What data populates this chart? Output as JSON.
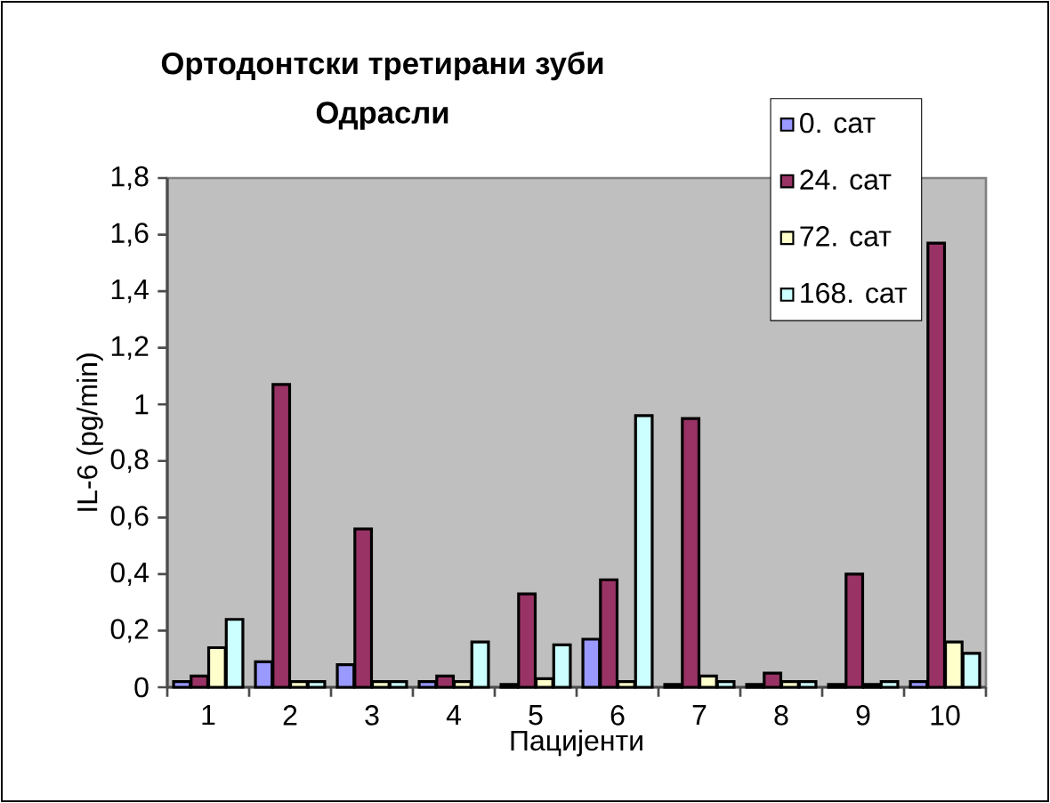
{
  "chart_data": {
    "type": "bar",
    "title": "Ортодонтски третирани зуби",
    "subtitle": "Одрасли",
    "xlabel": "Пацијенти",
    "ylabel": "IL-6 (pg/min)",
    "categories": [
      "1",
      "2",
      "3",
      "4",
      "5",
      "6",
      "7",
      "8",
      "9",
      "10"
    ],
    "series": [
      {
        "name": "0. сат",
        "color": "#9999ff",
        "values": [
          0.02,
          0.09,
          0.08,
          0.02,
          0.01,
          0.17,
          0.01,
          0.01,
          0.01,
          0.02
        ]
      },
      {
        "name": "24. сат",
        "color": "#993366",
        "values": [
          0.04,
          1.07,
          0.56,
          0.04,
          0.33,
          0.38,
          0.95,
          0.05,
          0.4,
          1.57
        ]
      },
      {
        "name": "72. сат",
        "color": "#ffffcc",
        "values": [
          0.14,
          0.02,
          0.02,
          0.02,
          0.03,
          0.02,
          0.04,
          0.02,
          0.01,
          0.16
        ]
      },
      {
        "name": "168. сат",
        "color": "#ccffff",
        "values": [
          0.24,
          0.02,
          0.02,
          0.16,
          0.15,
          0.96,
          0.02,
          0.02,
          0.02,
          0.12
        ]
      }
    ],
    "ylim": [
      0,
      1.8
    ],
    "yticks": [
      0,
      {
        "value": 0.2,
        "label": "0,2"
      },
      {
        "value": 0.4,
        "label": "0,4"
      },
      {
        "value": 0.6,
        "label": "0,6"
      },
      {
        "value": 0.8,
        "label": "0,8"
      },
      1,
      {
        "value": 1.2,
        "label": "1,2"
      },
      {
        "value": 1.4,
        "label": "1,4"
      },
      {
        "value": 1.6,
        "label": "1,6"
      },
      {
        "value": 1.8,
        "label": "1,8"
      }
    ],
    "legend": "top right"
  }
}
